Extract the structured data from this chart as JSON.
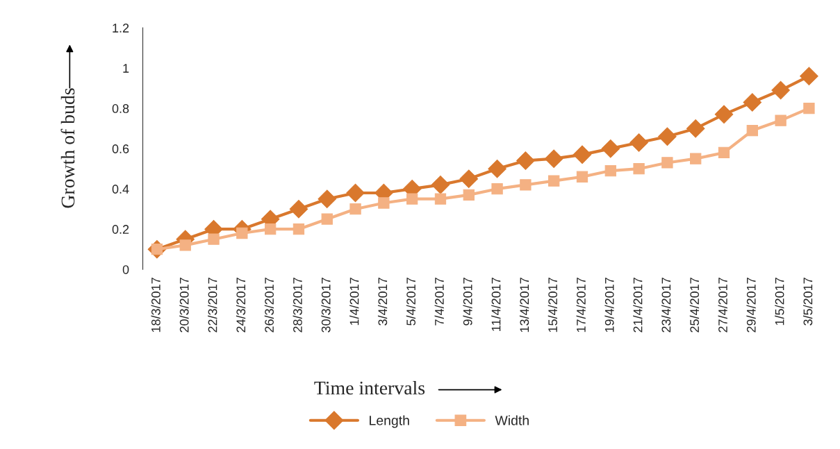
{
  "chart_data": {
    "type": "line",
    "xlabel": "Time intervals",
    "ylabel": "Growth of buds",
    "categories": [
      "18/3/2017",
      "20/3/2017",
      "22/3/2017",
      "24/3/2017",
      "26/3/2017",
      "28/3/2017",
      "30/3/2017",
      "1/4/2017",
      "3/4/2017",
      "5/4/2017",
      "7/4/2017",
      "9/4/2017",
      "11/4/2017",
      "13/4/2017",
      "15/4/2017",
      "17/4/2017",
      "19/4/2017",
      "21/4/2017",
      "23/4/2017",
      "25/4/2017",
      "27/4/2017",
      "29/4/2017",
      "1/5/2017",
      "3/5/2017"
    ],
    "series": [
      {
        "name": "Length",
        "color": "#d9782d",
        "marker": "diamond",
        "values": [
          0.1,
          0.15,
          0.2,
          0.2,
          0.25,
          0.3,
          0.35,
          0.38,
          0.38,
          0.4,
          0.42,
          0.45,
          0.5,
          0.54,
          0.55,
          0.57,
          0.6,
          0.63,
          0.66,
          0.7,
          0.77,
          0.83,
          0.89,
          0.96
        ]
      },
      {
        "name": "Width",
        "color": "#f4b183",
        "marker": "square",
        "values": [
          0.1,
          0.12,
          0.15,
          0.18,
          0.2,
          0.2,
          0.25,
          0.3,
          0.33,
          0.35,
          0.35,
          0.37,
          0.4,
          0.42,
          0.44,
          0.46,
          0.49,
          0.5,
          0.53,
          0.55,
          0.58,
          0.69,
          0.74,
          0.8
        ]
      }
    ],
    "ylim": [
      0,
      1.2
    ],
    "yticks": [
      {
        "value": 0,
        "label": "0"
      },
      0.2,
      0.4,
      0.6,
      0.8,
      {
        "value": 1,
        "label": "1"
      },
      1.2
    ],
    "grid": false,
    "legend": "bottom",
    "line_style": "solid"
  }
}
